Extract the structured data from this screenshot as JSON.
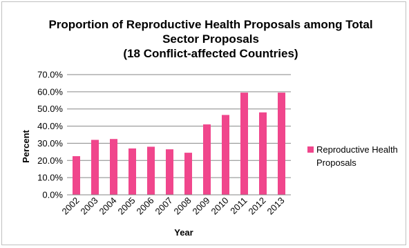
{
  "chart_data": {
    "type": "bar",
    "title_lines": [
      "Proportion of Reproductive Health Proposals among Total",
      "Sector Proposals",
      "(18 Conflict-affected Countries)"
    ],
    "xlabel": "Year",
    "ylabel": "Percent",
    "categories": [
      "2002",
      "2003",
      "2004",
      "2005",
      "2006",
      "2007",
      "2008",
      "2009",
      "2010",
      "2011",
      "2012",
      "2013"
    ],
    "series": [
      {
        "name": "Reproductive Health Proposals",
        "color": "#f0468c",
        "values": [
          22.5,
          32.0,
          32.5,
          27.0,
          28.0,
          26.5,
          24.5,
          41.0,
          46.5,
          59.5,
          48.0,
          59.5
        ]
      }
    ],
    "ylim": [
      0,
      70
    ],
    "yticks": [
      "0.0%",
      "10.0%",
      "20.0%",
      "30.0%",
      "40.0%",
      "50.0%",
      "60.0%",
      "70.0%"
    ],
    "grid": true,
    "legend": {
      "position": "right",
      "lines": [
        "Reproductive Health",
        "Proposals"
      ]
    }
  }
}
